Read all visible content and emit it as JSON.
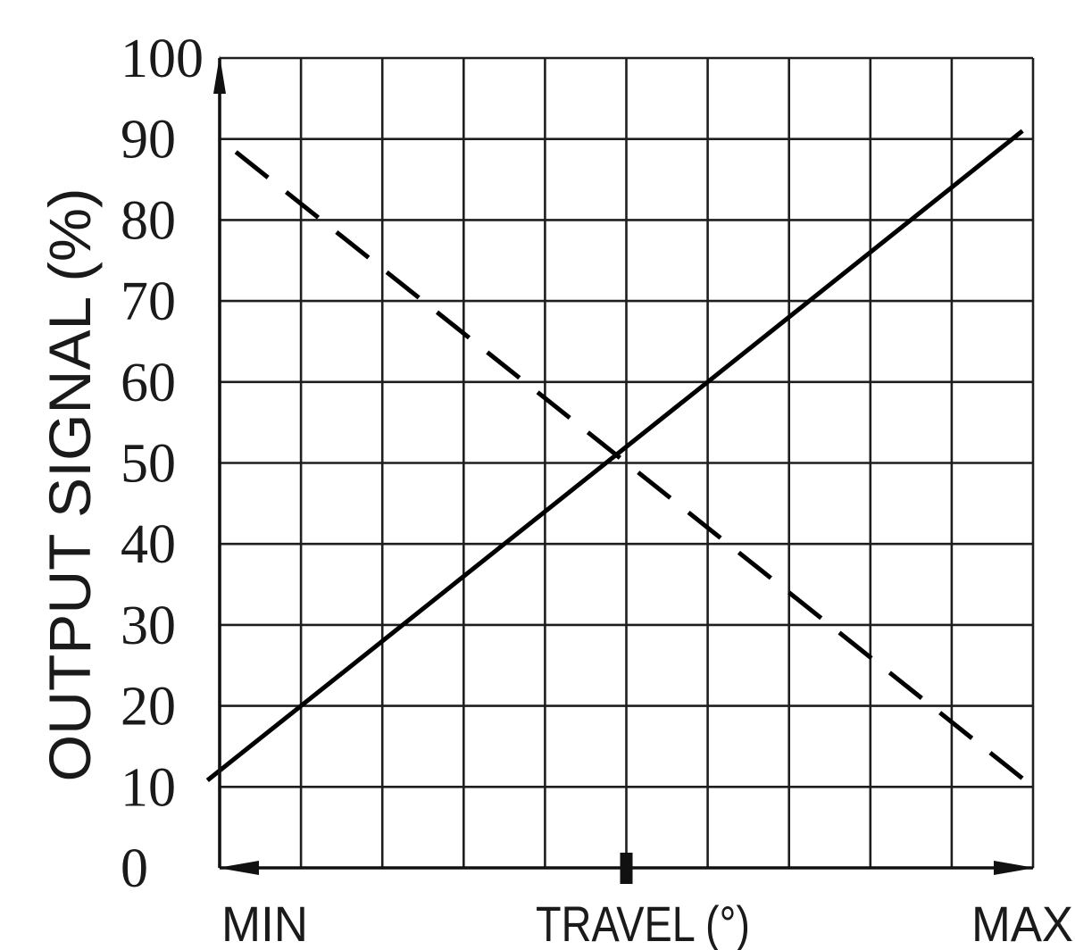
{
  "chart_data": {
    "type": "line",
    "xlabel": "TRAVEL (°)",
    "ylabel": "OUTPUT SIGNAL (%)",
    "x_min_label": "MIN",
    "x_max_label": "MAX",
    "xlim": [
      0,
      10
    ],
    "ylim": [
      0,
      100
    ],
    "xticks": [
      0,
      1,
      2,
      3,
      4,
      5,
      6,
      7,
      8,
      9,
      10
    ],
    "yticks": [
      0,
      10,
      20,
      30,
      40,
      50,
      60,
      70,
      80,
      90,
      100
    ],
    "ytick_labels": [
      "0",
      "10",
      "20",
      "30",
      "40",
      "50",
      "60",
      "70",
      "80",
      "90",
      "100"
    ],
    "grid": true,
    "center_tick": 5,
    "series": [
      {
        "dashed": false,
        "color": "#000000",
        "x": [
          -0.15,
          1,
          6,
          9.87
        ],
        "y": [
          10.8,
          20,
          60,
          91
        ]
      },
      {
        "dashed": true,
        "color": "#000000",
        "x": [
          0.2,
          5,
          10
        ],
        "y": [
          88.4,
          50,
          10
        ]
      }
    ]
  }
}
